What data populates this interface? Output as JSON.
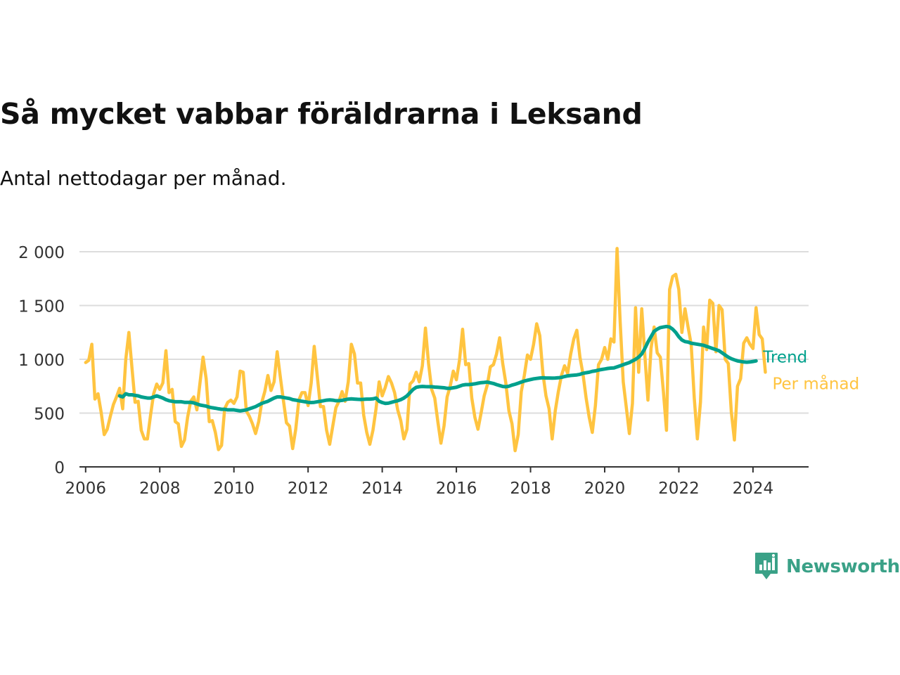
{
  "title": "Så mycket vabbar föräldrarna i Leksand",
  "subtitle": "Antal nettodagar per månad.",
  "brand": "Newsworthy",
  "colors": {
    "per_month": "#ffc440",
    "trend": "#00a08c",
    "axis": "#333333",
    "grid": "#dddddd",
    "brand": "#3aa187"
  },
  "chart_data": {
    "type": "line",
    "title": "Så mycket vabbar föräldrarna i Leksand",
    "subtitle": "Antal nettodagar per månad.",
    "xlabel": "",
    "ylabel": "",
    "xlim": [
      "2005-11",
      "2025-07"
    ],
    "ylim": [
      0,
      2000
    ],
    "y_ticks": [
      0,
      500,
      1000,
      1500,
      2000
    ],
    "y_tick_labels": [
      "0",
      "500",
      "1 000",
      "1 500",
      "2 000"
    ],
    "x_ticks": [
      "2006",
      "2008",
      "2010",
      "2012",
      "2014",
      "2016",
      "2018",
      "2020",
      "2022",
      "2024"
    ],
    "grid": true,
    "legend": "inline-end-labels",
    "series": [
      {
        "name": "Per månad",
        "start": "2006-01",
        "values": [
          970,
          990,
          1140,
          630,
          680,
          510,
          300,
          350,
          470,
          580,
          650,
          730,
          540,
          1000,
          1250,
          920,
          600,
          610,
          340,
          260,
          260,
          480,
          680,
          770,
          720,
          780,
          1080,
          690,
          720,
          420,
          400,
          190,
          250,
          460,
          610,
          650,
          530,
          780,
          1020,
          820,
          420,
          430,
          320,
          160,
          200,
          540,
          600,
          620,
          590,
          650,
          890,
          880,
          520,
          470,
          400,
          310,
          420,
          600,
          700,
          850,
          710,
          790,
          1070,
          840,
          620,
          410,
          380,
          170,
          350,
          620,
          690,
          690,
          570,
          780,
          1120,
          840,
          560,
          560,
          340,
          210,
          380,
          550,
          610,
          700,
          610,
          790,
          1140,
          1050,
          780,
          780,
          480,
          320,
          210,
          340,
          540,
          790,
          660,
          740,
          840,
          780,
          690,
          530,
          430,
          260,
          350,
          770,
          800,
          880,
          790,
          940,
          1290,
          960,
          720,
          640,
          420,
          220,
          380,
          650,
          750,
          890,
          810,
          990,
          1280,
          950,
          960,
          640,
          460,
          350,
          500,
          660,
          760,
          930,
          950,
          1050,
          1200,
          960,
          780,
          520,
          400,
          150,
          300,
          700,
          850,
          1040,
          1000,
          1140,
          1330,
          1220,
          870,
          660,
          540,
          260,
          520,
          700,
          850,
          940,
          870,
          1050,
          1190,
          1270,
          1020,
          860,
          640,
          460,
          320,
          570,
          950,
          1000,
          1110,
          1000,
          1190,
          1160,
          2030,
          1350,
          790,
          550,
          310,
          590,
          1480,
          880,
          1470,
          1040,
          620,
          1100,
          1300,
          1060,
          1020,
          700,
          340,
          1650,
          1770,
          1790,
          1650,
          1250,
          1470,
          1300,
          1140,
          640,
          260,
          600,
          1300,
          1090,
          1550,
          1520,
          1070,
          1500,
          1460,
          1000,
          960,
          510,
          250,
          750,
          820,
          1150,
          1200,
          1140,
          1100,
          1480,
          1230,
          1190,
          880
        ]
      },
      {
        "name": "Trend",
        "start": "2006-12",
        "values": [
          660,
          650,
          680,
          670,
          670,
          665,
          660,
          650,
          645,
          640,
          640,
          650,
          660,
          650,
          640,
          625,
          615,
          610,
          605,
          605,
          605,
          600,
          600,
          600,
          595,
          585,
          575,
          570,
          565,
          555,
          550,
          545,
          540,
          535,
          535,
          530,
          530,
          530,
          525,
          520,
          525,
          530,
          540,
          550,
          560,
          575,
          590,
          600,
          610,
          625,
          640,
          650,
          650,
          645,
          640,
          635,
          625,
          620,
          615,
          610,
          605,
          600,
          598,
          600,
          605,
          610,
          615,
          620,
          622,
          620,
          615,
          615,
          618,
          625,
          630,
          632,
          630,
          628,
          627,
          628,
          630,
          630,
          632,
          640,
          610,
          598,
          590,
          592,
          600,
          608,
          615,
          625,
          640,
          660,
          690,
          720,
          740,
          745,
          748,
          746,
          745,
          745,
          742,
          740,
          738,
          735,
          730,
          730,
          735,
          740,
          750,
          760,
          765,
          765,
          768,
          772,
          778,
          783,
          785,
          788,
          782,
          775,
          765,
          756,
          748,
          745,
          750,
          760,
          768,
          778,
          788,
          798,
          805,
          812,
          818,
          822,
          826,
          828,
          826,
          826,
          825,
          826,
          828,
          832,
          840,
          846,
          850,
          852,
          855,
          860,
          870,
          875,
          880,
          888,
          892,
          900,
          905,
          910,
          915,
          918,
          920,
          930,
          940,
          950,
          960,
          970,
          985,
          1000,
          1020,
          1050,
          1100,
          1160,
          1210,
          1260,
          1280,
          1295,
          1300,
          1305,
          1300,
          1280,
          1250,
          1210,
          1180,
          1165,
          1160,
          1150,
          1145,
          1140,
          1135,
          1130,
          1120,
          1110,
          1100,
          1090,
          1080,
          1060,
          1040,
          1020,
          1005,
          995,
          985,
          980,
          975,
          973,
          975,
          980,
          985
        ]
      }
    ]
  }
}
